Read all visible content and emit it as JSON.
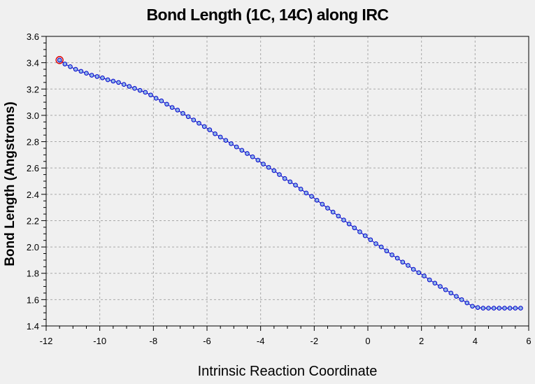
{
  "chart_data": {
    "type": "line",
    "title": "Bond Length (1C, 14C) along IRC",
    "xlabel": "Intrinsic Reaction Coordinate",
    "ylabel": "Bond Length (Angstroms)",
    "xlim": [
      -12,
      6
    ],
    "ylim": [
      1.4,
      3.6
    ],
    "xticks": [
      -12,
      -10,
      -8,
      -6,
      -4,
      -2,
      0,
      2,
      4,
      6
    ],
    "yticks": [
      1.4,
      1.6,
      1.8,
      2.0,
      2.2,
      2.4,
      2.6,
      2.8,
      3.0,
      3.2,
      3.4,
      3.6
    ],
    "ytick_labels": [
      "1.4",
      "1.6",
      "1.8",
      "2.0",
      "2.2",
      "2.4",
      "2.6",
      "2.8",
      "3.0",
      "3.2",
      "3.4",
      "3.6"
    ],
    "grid": true,
    "highlight_point_index": 0,
    "colors": {
      "line": "#0000cc",
      "marker_fill": "#8fb4e8",
      "highlight": "#dd0000",
      "grid": "#a8a8a8",
      "plot_bg": "#f0f0f0"
    },
    "series": [
      {
        "x": [
          -11.5,
          -11.3,
          -11.1,
          -10.9,
          -10.7,
          -10.5,
          -10.3,
          -10.1,
          -9.9,
          -9.7,
          -9.5,
          -9.3,
          -9.1,
          -8.9,
          -8.7,
          -8.5,
          -8.3,
          -8.1,
          -7.9,
          -7.7,
          -7.5,
          -7.3,
          -7.1,
          -6.9,
          -6.7,
          -6.5,
          -6.3,
          -6.1,
          -5.9,
          -5.7,
          -5.5,
          -5.3,
          -5.1,
          -4.9,
          -4.7,
          -4.5,
          -4.3,
          -4.1,
          -3.9,
          -3.7,
          -3.5,
          -3.3,
          -3.1,
          -2.9,
          -2.7,
          -2.5,
          -2.3,
          -2.1,
          -1.9,
          -1.7,
          -1.5,
          -1.3,
          -1.1,
          -0.9,
          -0.7,
          -0.5,
          -0.3,
          -0.1,
          0.1,
          0.3,
          0.5,
          0.7,
          0.9,
          1.1,
          1.3,
          1.5,
          1.7,
          1.9,
          2.1,
          2.3,
          2.5,
          2.7,
          2.9,
          3.1,
          3.3,
          3.5,
          3.7,
          3.9,
          4.1,
          4.3,
          4.5,
          4.7,
          4.9,
          5.1,
          5.3,
          5.5,
          5.7
        ],
        "y": [
          3.42,
          3.39,
          3.37,
          3.35,
          3.335,
          3.32,
          3.305,
          3.295,
          3.285,
          3.27,
          3.26,
          3.25,
          3.235,
          3.22,
          3.205,
          3.19,
          3.175,
          3.155,
          3.13,
          3.11,
          3.085,
          3.06,
          3.04,
          3.015,
          2.99,
          2.965,
          2.94,
          2.915,
          2.89,
          2.86,
          2.835,
          2.81,
          2.785,
          2.76,
          2.735,
          2.71,
          2.685,
          2.66,
          2.63,
          2.605,
          2.58,
          2.55,
          2.52,
          2.495,
          2.47,
          2.44,
          2.41,
          2.385,
          2.355,
          2.325,
          2.295,
          2.265,
          2.235,
          2.205,
          2.175,
          2.145,
          2.115,
          2.085,
          2.055,
          2.025,
          2.0,
          1.97,
          1.94,
          1.915,
          1.885,
          1.86,
          1.83,
          1.805,
          1.78,
          1.75,
          1.725,
          1.7,
          1.675,
          1.65,
          1.625,
          1.6,
          1.575,
          1.55,
          1.54,
          1.535,
          1.535,
          1.535,
          1.535,
          1.535,
          1.535,
          1.535,
          1.535
        ]
      }
    ]
  }
}
